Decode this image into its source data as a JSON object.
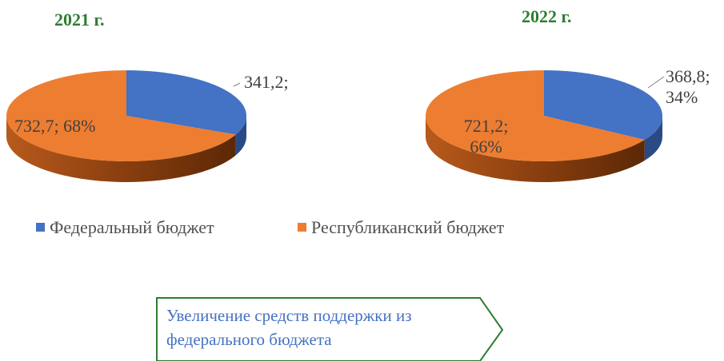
{
  "chart_data": [
    {
      "type": "pie3d",
      "title": "2021 г.",
      "categories": [
        "Федеральный бюджет",
        "Республиканский бюджет"
      ],
      "values": [
        341.2,
        732.7
      ],
      "value_labels": [
        "341,2;",
        "732,7; 68%"
      ],
      "colors": [
        "#4472c4",
        "#ed7d31"
      ]
    },
    {
      "type": "pie3d",
      "title": "2022 г.",
      "categories": [
        "Федеральный бюджет",
        "Республиканский бюджет"
      ],
      "values": [
        368.8,
        721.2
      ],
      "value_labels": [
        "368,8; 34%",
        "721,2; 66%"
      ],
      "colors": [
        "#4472c4",
        "#ed7d31"
      ]
    }
  ],
  "callout": {
    "text": "Увеличение средств поддержки из федерального бюджета"
  }
}
